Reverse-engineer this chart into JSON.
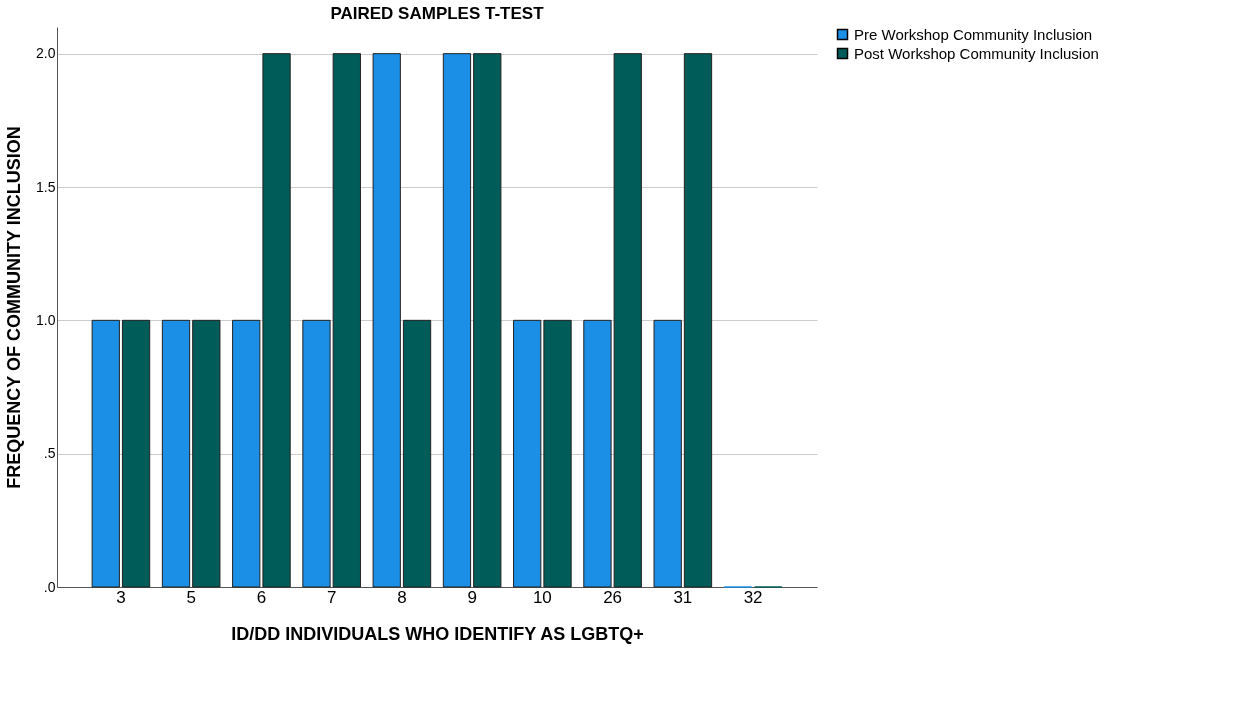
{
  "chart_data": {
    "type": "bar",
    "title": "PAIRED SAMPLES T-TEST",
    "xlabel": "ID/DD INDIVIDUALS WHO IDENTIFY AS LGBTQ+",
    "ylabel": "FREQUENCY OF COMMUNITY INCLUSION",
    "categories": [
      "3",
      "5",
      "6",
      "7",
      "8",
      "9",
      "10",
      "26",
      "31",
      "32"
    ],
    "series": [
      {
        "name": "Pre Workshop Community Inclusion",
        "color": "#1b8fe6",
        "values": [
          1,
          1,
          1,
          1,
          2,
          2,
          1,
          1,
          1,
          0
        ]
      },
      {
        "name": "Post Workshop Community Inclusion",
        "color": "#005c58",
        "values": [
          1,
          1,
          2,
          2,
          1,
          2,
          1,
          2,
          2,
          0
        ]
      }
    ],
    "ylim": [
      0,
      2.1
    ],
    "yticks": [
      {
        "value": 0,
        "label": ".0"
      },
      {
        "value": 0.5,
        "label": ".5"
      },
      {
        "value": 1,
        "label": "1.0"
      },
      {
        "value": 1.5,
        "label": "1.5"
      },
      {
        "value": 2,
        "label": "2.0"
      }
    ],
    "grid": "y",
    "legend": "top right"
  }
}
